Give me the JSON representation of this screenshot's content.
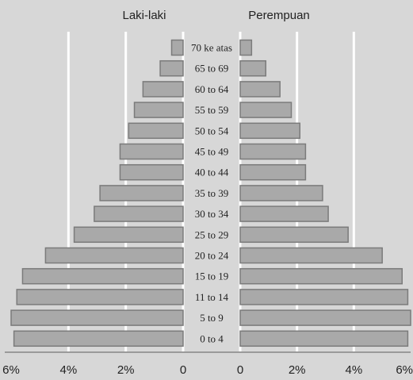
{
  "chart_data": {
    "type": "bar",
    "orientation": "horizontal-pyramid",
    "side_titles": [
      "Laki-laki",
      "Perempuan"
    ],
    "categories": [
      "70 ke atas",
      "65 to 69",
      "60 to 64",
      "55 to 59",
      "50 to 54",
      "45 to 49",
      "40 to 44",
      "35 to 39",
      "30 to 34",
      "25 to 29",
      "20 to 24",
      "15 to 19",
      "11 to 14",
      "5 to 9",
      "0 to 4"
    ],
    "series": [
      {
        "name": "Laki-laki",
        "values": [
          0.4,
          0.8,
          1.4,
          1.7,
          1.9,
          2.2,
          2.2,
          2.9,
          3.1,
          3.8,
          4.8,
          5.6,
          5.8,
          6.0,
          5.9
        ]
      },
      {
        "name": "Perempuan",
        "values": [
          0.4,
          0.9,
          1.4,
          1.8,
          2.1,
          2.3,
          2.3,
          2.9,
          3.1,
          3.8,
          5.0,
          5.7,
          5.9,
          6.0,
          5.9
        ]
      }
    ],
    "left_axis_ticks": [
      "6%",
      "4%",
      "2%",
      "0"
    ],
    "right_axis_ticks": [
      "0",
      "2%",
      "4%",
      "6%"
    ],
    "xlim": [
      0,
      6
    ],
    "grid": true
  }
}
